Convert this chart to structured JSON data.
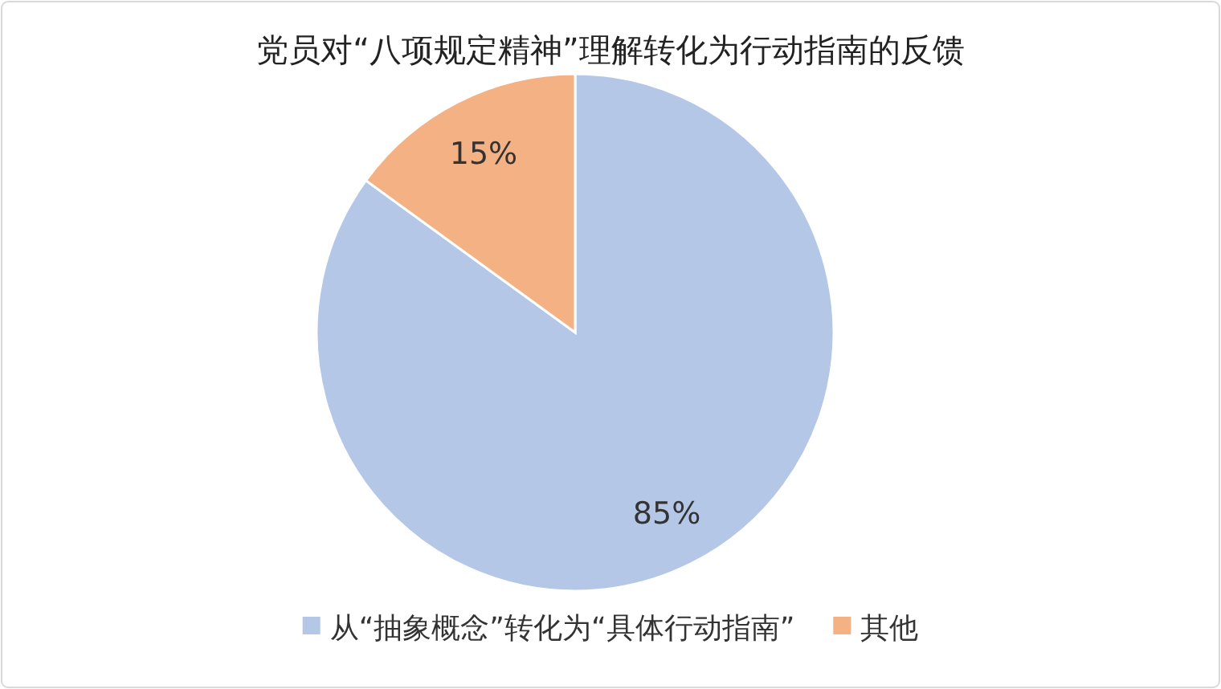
{
  "chart_data": {
    "type": "pie",
    "title": "党员对“八项规定精神”理解转化为行动指南的反馈",
    "categories": [
      "从“抽象概念”转化为“具体行动指南”",
      "其他"
    ],
    "values": [
      85,
      15
    ],
    "colors": [
      "#b4c7e7",
      "#f4b183"
    ],
    "value_labels": [
      "85%",
      "15%"
    ],
    "legend": "bottom"
  }
}
